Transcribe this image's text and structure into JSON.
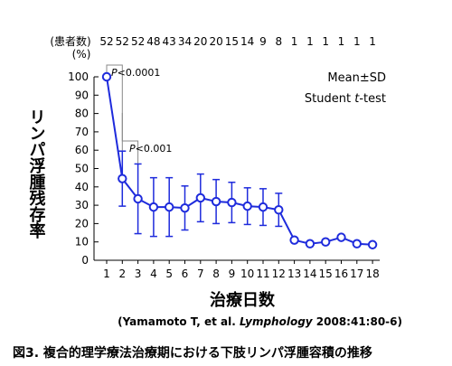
{
  "chart_data": {
    "type": "line",
    "x": [
      1,
      2,
      3,
      4,
      5,
      6,
      7,
      8,
      9,
      10,
      11,
      12,
      13,
      14,
      15,
      16,
      17,
      18
    ],
    "x_tick_labels": [
      "1",
      "2",
      "3",
      "4",
      "5",
      "6",
      "7",
      "8",
      "9",
      "10",
      "11",
      "12",
      "13",
      "14",
      "15",
      "16",
      "17",
      "18"
    ],
    "series": [
      {
        "values": [
          100,
          44.5,
          33.5,
          29,
          29,
          28.5,
          34,
          32,
          31.5,
          29.5,
          29,
          27.5,
          11,
          9,
          10,
          12.5,
          9,
          8.5
        ],
        "sd": [
          0,
          15,
          19,
          16,
          16,
          12,
          13,
          12,
          11,
          10,
          10,
          9,
          0,
          0,
          0,
          0,
          0,
          0
        ]
      }
    ],
    "ylim": [
      0,
      100
    ],
    "y_ticks": [
      0,
      10,
      20,
      30,
      40,
      50,
      60,
      70,
      80,
      90,
      100
    ],
    "y_tick_labels": [
      "0",
      "10",
      "20",
      "30",
      "40",
      "50",
      "60",
      "70",
      "80",
      "90",
      "100"
    ],
    "y_unit": "(%)",
    "ylabel": "リンパ浮腫残存率",
    "xlabel": "治療日数",
    "patients_label": "(患者数)",
    "patient_counts": [
      "52",
      "52",
      "52",
      "48",
      "43",
      "34",
      "20",
      "20",
      "15",
      "14",
      "9",
      "8",
      "1",
      "1",
      "1",
      "1",
      "1",
      "1"
    ],
    "legend": {
      "line1": "Mean±SD",
      "line2_prefix": "Student ",
      "line2_italic": "t",
      "line2_suffix": "-test"
    },
    "annotations": {
      "p1": {
        "italic": "P",
        "text": "<0.0001"
      },
      "p2": {
        "italic": "P",
        "text": "<0.001"
      }
    },
    "citation": {
      "prefix": "(Yamamoto T, et al. ",
      "journal": "Lymphology",
      "suffix": " 2008:41:80-6)"
    },
    "grid": false,
    "colors": {
      "series": "#1e2bdc",
      "marker_fill": "#ffffff",
      "axis": "#000000",
      "bracket": "#888888"
    }
  },
  "caption": "図3. 複合的理学療法治療期における下肢リンパ浮腫容積の推移"
}
